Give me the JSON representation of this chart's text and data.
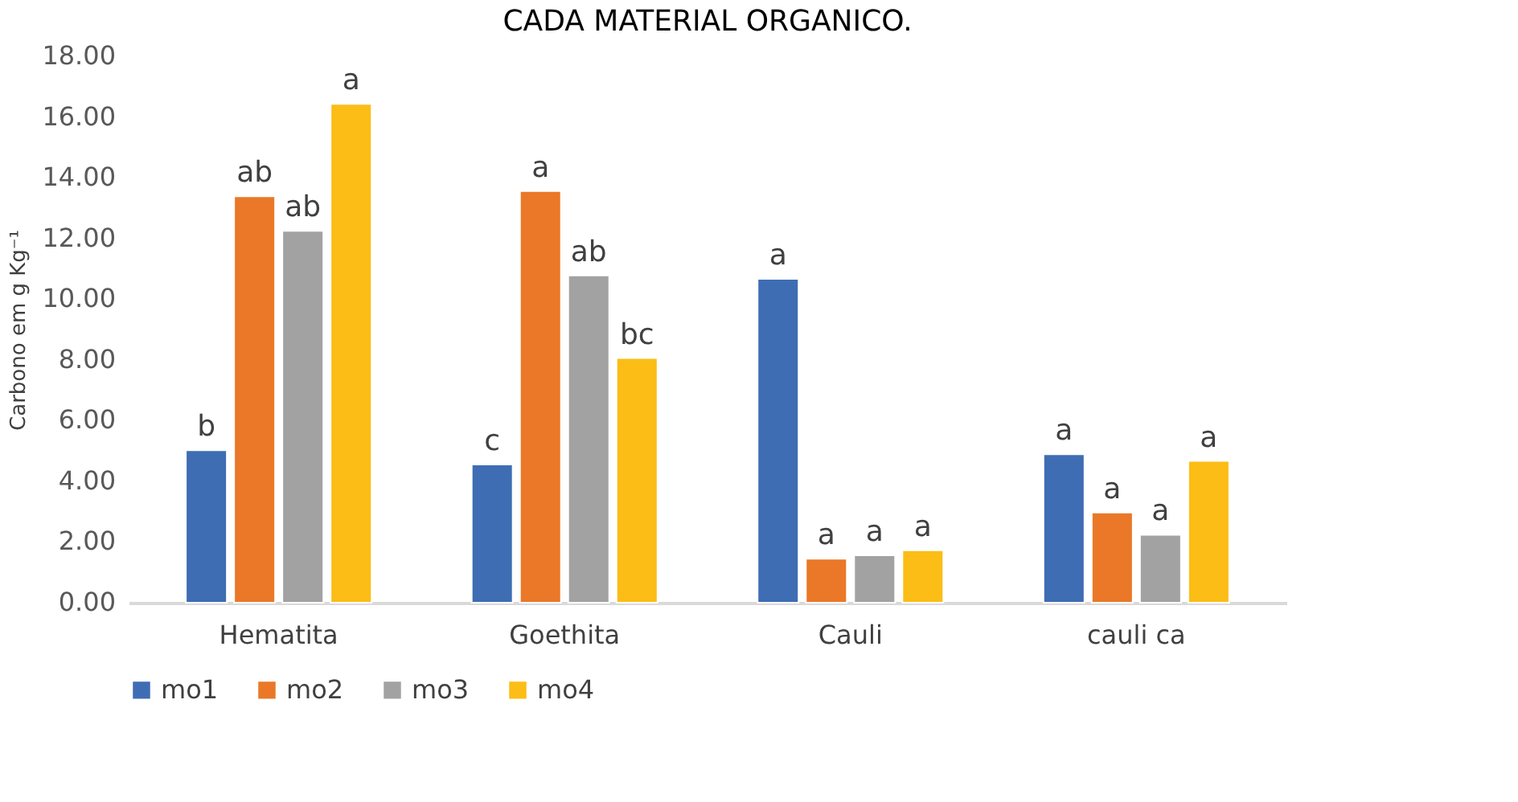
{
  "chart_data": {
    "type": "bar",
    "title": "CADA MATERIAL ORGANICO.",
    "ylabel": "Carbono em g Kg⁻¹",
    "categories": [
      "Hematita",
      "Goethita",
      "Cauli",
      "cauli ca"
    ],
    "series": [
      {
        "name": "mo1",
        "color": "#3e6db4",
        "values": [
          5.02,
          4.55,
          10.67,
          4.89
        ],
        "value_labels": [
          "b",
          "c",
          "a",
          "a"
        ]
      },
      {
        "name": "mo2",
        "color": "#ea7828",
        "values": [
          13.39,
          13.56,
          1.45,
          2.97
        ],
        "value_labels": [
          "ab",
          "a",
          "a",
          "a"
        ]
      },
      {
        "name": "mo3",
        "color": "#a2a2a2",
        "values": [
          12.25,
          10.78,
          1.56,
          2.24
        ],
        "value_labels": [
          "ab",
          "ab",
          "a",
          "a"
        ]
      },
      {
        "name": "mo4",
        "color": "#fbbd16",
        "values": [
          16.43,
          8.06,
          1.73,
          4.67
        ],
        "value_labels": [
          "a",
          "bc",
          "a",
          "a"
        ]
      }
    ],
    "ylim": [
      0,
      18
    ],
    "yticks": [
      {
        "value": 0,
        "label": "0.00"
      },
      {
        "value": 2,
        "label": "2.00"
      },
      {
        "value": 4,
        "label": "4.00"
      },
      {
        "value": 6,
        "label": "6.00"
      },
      {
        "value": 8,
        "label": "8.00"
      },
      {
        "value": 10,
        "label": "10.00"
      },
      {
        "value": 12,
        "label": "12.00"
      },
      {
        "value": 14,
        "label": "14.00"
      },
      {
        "value": 16,
        "label": "16.00"
      },
      {
        "value": 18,
        "label": "18.00"
      }
    ],
    "grid": false,
    "legend": "bottom"
  }
}
